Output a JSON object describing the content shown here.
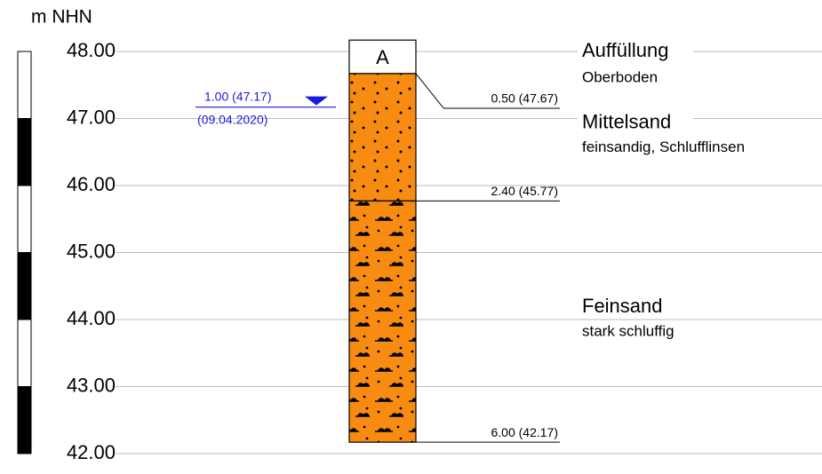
{
  "axis": {
    "unit": "m NHN",
    "ylim": [
      42,
      48
    ],
    "yticks": [
      {
        "value": 48,
        "label": "48.00"
      },
      {
        "value": 47,
        "label": "47.00"
      },
      {
        "value": 46,
        "label": "46.00"
      },
      {
        "value": 45,
        "label": "45.00"
      },
      {
        "value": 44,
        "label": "44.00"
      },
      {
        "value": 43,
        "label": "43.00"
      },
      {
        "value": 42,
        "label": "42.00"
      }
    ]
  },
  "column": {
    "label": "A",
    "ground": 48.17
  },
  "layers": [
    {
      "name": "Auffüllung",
      "description": "Oberboden",
      "bottom": 47.67,
      "bottom_label": "0.50 (47.67)",
      "fill": "white"
    },
    {
      "name": "Mittelsand",
      "description": "feinsandig, Schlufflinsen",
      "bottom": 45.77,
      "bottom_label": "2.40 (45.77)",
      "fill": "dots"
    },
    {
      "name": "Feinsand",
      "description": "stark schluffig",
      "bottom": 42.17,
      "bottom_label": "6.00 (42.17)",
      "fill": "silt"
    }
  ],
  "groundwater": {
    "level": 47.17,
    "label": "1.00 (47.17)",
    "date": "(09.04.2020)",
    "color": "#1a1adb"
  }
}
